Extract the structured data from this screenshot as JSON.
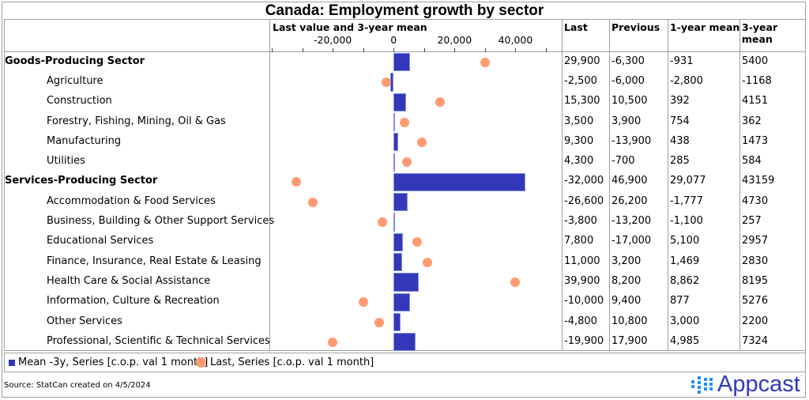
{
  "chart_data": {
    "type": "bar",
    "title": "Canada: Employment growth by sector",
    "axis_title": "Last value and 3-year mean",
    "xlim": [
      -40000,
      50000
    ],
    "ticks": [
      -40000,
      -30000,
      -20000,
      -10000,
      0,
      10000,
      20000,
      30000,
      40000,
      50000
    ],
    "tick_labels": [
      {
        "value": -20000,
        "label": "-20,000"
      },
      {
        "value": 0,
        "label": "0"
      },
      {
        "value": 20000,
        "label": "20,000"
      },
      {
        "value": 40000,
        "label": "40,000"
      }
    ],
    "columns": [
      "Last",
      "Previous",
      "1-year mean",
      "3-year mean"
    ],
    "series": [
      {
        "name": "Mean -3y, Series [c.o.p. val 1 month]",
        "type": "bar",
        "color": "#3338bb",
        "field": "mean3"
      },
      {
        "name": "Last, Series [c.o.p. val 1 month]",
        "type": "dot",
        "color": "#ff9a73",
        "field": "last"
      }
    ],
    "rows": [
      {
        "label": "Goods-Producing Sector",
        "level": 0,
        "last": 29900,
        "last_txt": "29,900",
        "previous": "-6,300",
        "mean1": "-931",
        "mean3": 5400,
        "mean3_txt": "5400"
      },
      {
        "label": "Agriculture",
        "level": 1,
        "last": -2500,
        "last_txt": "-2,500",
        "previous": "-6,000",
        "mean1": "-2,800",
        "mean3": -1168,
        "mean3_txt": "-1168"
      },
      {
        "label": "Construction",
        "level": 1,
        "last": 15300,
        "last_txt": "15,300",
        "previous": "10,500",
        "mean1": "392",
        "mean3": 4151,
        "mean3_txt": "4151"
      },
      {
        "label": "Forestry, Fishing, Mining, Oil & Gas",
        "level": 1,
        "last": 3500,
        "last_txt": "3,500",
        "previous": "3,900",
        "mean1": "754",
        "mean3": 362,
        "mean3_txt": "362"
      },
      {
        "label": "Manufacturing",
        "level": 1,
        "last": 9300,
        "last_txt": "9,300",
        "previous": "-13,900",
        "mean1": "438",
        "mean3": 1473,
        "mean3_txt": "1473"
      },
      {
        "label": "Utilities",
        "level": 1,
        "last": 4300,
        "last_txt": "4,300",
        "previous": "-700",
        "mean1": "285",
        "mean3": 584,
        "mean3_txt": "584"
      },
      {
        "label": "Services-Producing Sector",
        "level": 0,
        "last": -32000,
        "last_txt": "-32,000",
        "previous": "46,900",
        "mean1": "29,077",
        "mean3": 43159,
        "mean3_txt": "43159"
      },
      {
        "label": "Accommodation & Food Services",
        "level": 1,
        "last": -26600,
        "last_txt": "-26,600",
        "previous": "26,200",
        "mean1": "-1,777",
        "mean3": 4730,
        "mean3_txt": "4730"
      },
      {
        "label": "Business, Building & Other Support Services",
        "level": 1,
        "last": -3800,
        "last_txt": "-3,800",
        "previous": "-13,200",
        "mean1": "-1,100",
        "mean3": 257,
        "mean3_txt": "257"
      },
      {
        "label": "Educational Services",
        "level": 1,
        "last": 7800,
        "last_txt": "7,800",
        "previous": "-17,000",
        "mean1": "5,100",
        "mean3": 2957,
        "mean3_txt": "2957"
      },
      {
        "label": "Finance, Insurance, Real Estate & Leasing",
        "level": 1,
        "last": 11000,
        "last_txt": "11,000",
        "previous": "3,200",
        "mean1": "1,469",
        "mean3": 2830,
        "mean3_txt": "2830"
      },
      {
        "label": "Health Care & Social Assistance",
        "level": 1,
        "last": 39900,
        "last_txt": "39,900",
        "previous": "8,200",
        "mean1": "8,862",
        "mean3": 8195,
        "mean3_txt": "8195"
      },
      {
        "label": "Information, Culture & Recreation",
        "level": 1,
        "last": -10000,
        "last_txt": "-10,000",
        "previous": "9,400",
        "mean1": "877",
        "mean3": 5276,
        "mean3_txt": "5276"
      },
      {
        "label": "Other Services",
        "level": 1,
        "last": -4800,
        "last_txt": "-4,800",
        "previous": "10,800",
        "mean1": "3,000",
        "mean3": 2200,
        "mean3_txt": "2200"
      },
      {
        "label": "Professional, Scientific & Technical Services",
        "level": 1,
        "last": -19900,
        "last_txt": "-19,900",
        "previous": "17,900",
        "mean1": "4,985",
        "mean3": 7324,
        "mean3_txt": "7324"
      }
    ]
  },
  "legend": {
    "bar_label": "Mean -3y, Series [c.o.p. val 1 month]",
    "dot_label": "Last, Series [c.o.p. val 1 month]"
  },
  "footer": {
    "source": "Source: StatCan created on 4/5/2024",
    "logo_text": "Appcast",
    "logo_tm": "™"
  }
}
